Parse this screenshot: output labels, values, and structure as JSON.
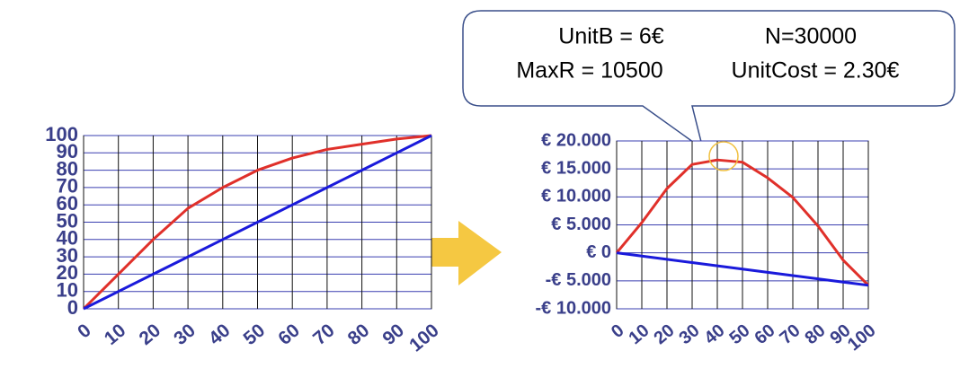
{
  "chart_data": [
    {
      "type": "line",
      "x": [
        0,
        10,
        20,
        30,
        40,
        50,
        60,
        70,
        80,
        90,
        100
      ],
      "xlim": [
        0,
        100
      ],
      "xticks": [
        0,
        10,
        20,
        30,
        40,
        50,
        60,
        70,
        80,
        90,
        100
      ],
      "ylim": [
        0,
        100
      ],
      "yticks": [
        0,
        10,
        20,
        30,
        40,
        50,
        60,
        70,
        80,
        90,
        100
      ],
      "grid": true,
      "series": [
        {
          "color": "#e0302a",
          "values": [
            0,
            20,
            40,
            58,
            70,
            80,
            87,
            92,
            95,
            98,
            100
          ]
        },
        {
          "color": "#1a1adb",
          "values": [
            0,
            10,
            20,
            30,
            40,
            50,
            60,
            70,
            80,
            90,
            100
          ]
        }
      ]
    },
    {
      "type": "line",
      "x": [
        0,
        10,
        20,
        30,
        40,
        50,
        60,
        70,
        80,
        90,
        100
      ],
      "xlim": [
        0,
        100
      ],
      "xticks": [
        0,
        10,
        20,
        30,
        40,
        50,
        60,
        70,
        80,
        90,
        100
      ],
      "ylim": [
        -10000,
        20000
      ],
      "yticks": [
        {
          "value": -10000,
          "label": "-€ 10.000"
        },
        {
          "value": -5000,
          "label": "-€ 5.000"
        },
        {
          "value": 0,
          "label": "€ 0"
        },
        {
          "value": 5000,
          "label": "€ 5.000"
        },
        {
          "value": 10000,
          "label": "€ 10.000"
        },
        {
          "value": 15000,
          "label": "€ 15.000"
        },
        {
          "value": 20000,
          "label": "€ 20.000"
        }
      ],
      "negative_label_color": "#e0302a",
      "grid": true,
      "annotations": [
        "UnitB = 6€",
        "N=30000",
        "MaxR = 10500",
        "UnitCost = 2.30€"
      ],
      "series": [
        {
          "color": "#e0302a",
          "values": [
            0,
            5400,
            11500,
            15800,
            16600,
            16200,
            13400,
            9900,
            4800,
            -1300,
            -5800
          ]
        },
        {
          "color": "#1a1adb",
          "values": [
            0,
            -580,
            -1160,
            -1740,
            -2320,
            -2900,
            -3480,
            -4060,
            -4640,
            -5220,
            -5800
          ]
        }
      ]
    }
  ]
}
